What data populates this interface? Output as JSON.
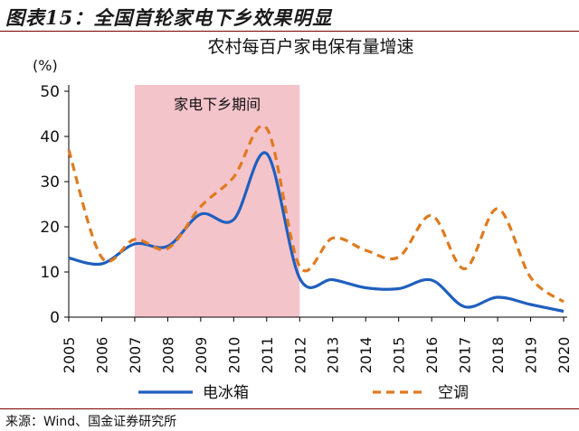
{
  "figure": {
    "title": "图表15：全国首轮家电下乡效果明显",
    "source": "来源：Wind、国金证券研究所"
  },
  "colors": {
    "series_fridge": "#1f5fbf",
    "series_ac": "#e07a1f",
    "shade": "#f4c4cb",
    "rule": "#7a0000"
  },
  "chart_data": {
    "type": "line",
    "title": "农村每百户家电保有量增速",
    "ylabel": "(%)",
    "xlabel": "",
    "ylim": [
      0,
      50
    ],
    "yticks": [
      0,
      10,
      20,
      30,
      40,
      50
    ],
    "x": [
      2005,
      2006,
      2007,
      2008,
      2009,
      2010,
      2011,
      2012,
      2013,
      2014,
      2015,
      2016,
      2017,
      2018,
      2019,
      2020
    ],
    "x_tick_labels": [
      "2005",
      "2006",
      "2007",
      "2008",
      "2009",
      "2010",
      "2011",
      "2012",
      "2013",
      "2014",
      "2015",
      "2016",
      "2017",
      "2018",
      "2019",
      "2020"
    ],
    "series": [
      {
        "name": "电冰箱",
        "style": "solid",
        "points": [
          [
            2005,
            13.1
          ],
          [
            2006,
            11.8
          ],
          [
            2007,
            16.2
          ],
          [
            2008,
            15.7
          ],
          [
            2009,
            22.8
          ],
          [
            2010,
            21.6
          ],
          [
            2011,
            36.2
          ],
          [
            2012,
            8.6
          ],
          [
            2013,
            8.3
          ],
          [
            2014,
            6.5
          ],
          [
            2015,
            6.3
          ],
          [
            2016,
            8.2
          ],
          [
            2017,
            2.3
          ],
          [
            2018,
            4.4
          ],
          [
            2019,
            2.8
          ],
          [
            2020,
            1.3
          ]
        ]
      },
      {
        "name": "空调",
        "style": "dashed",
        "points": [
          [
            2005,
            37.0
          ],
          [
            2006,
            13.2
          ],
          [
            2007,
            17.2
          ],
          [
            2008,
            15.2
          ],
          [
            2009,
            24.5
          ],
          [
            2010,
            31.0
          ],
          [
            2011,
            41.8
          ],
          [
            2012,
            11.2
          ],
          [
            2013,
            17.5
          ],
          [
            2014,
            14.8
          ],
          [
            2015,
            13.3
          ],
          [
            2016,
            22.5
          ],
          [
            2017,
            10.7
          ],
          [
            2018,
            24.0
          ],
          [
            2019,
            8.8
          ],
          [
            2020,
            3.4
          ]
        ]
      }
    ],
    "shaded_region": {
      "x_start": 2007,
      "x_end": 2012,
      "label": "家电下乡期间"
    },
    "grid": false,
    "legend": "bottom"
  }
}
